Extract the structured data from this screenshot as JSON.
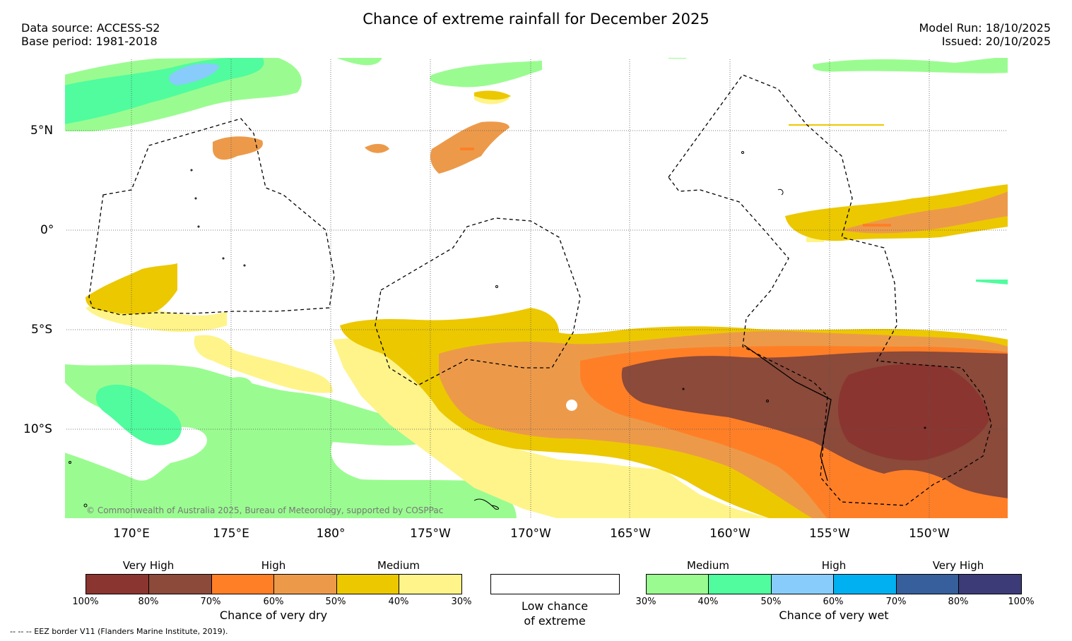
{
  "header": {
    "title": "Chance of extreme rainfall for December 2025",
    "data_source": "Data source: ACCESS-S2",
    "base_period": "Base period: 1981-2018",
    "model_run": "Model Run: 18/10/2025",
    "issued": "Issued: 20/10/2025"
  },
  "map": {
    "lat_labels": [
      "5°N",
      "0°",
      "5°S",
      "10°S"
    ],
    "lon_labels": [
      "170°E",
      "175°E",
      "180°",
      "175°W",
      "170°W",
      "165°W",
      "160°W",
      "155°W",
      "150°W"
    ],
    "copyright": "© Commonwealth of Australia 2025, Bureau of Meteorology, supported by COSPPac"
  },
  "legend": {
    "dry": {
      "categories": [
        "Very High",
        "High",
        "Medium"
      ],
      "percent_labels": [
        "100%",
        "80%",
        "70%",
        "60%",
        "50%",
        "40%",
        "30%"
      ],
      "colors": [
        "#8a3530",
        "#8b4a3a",
        "#ff7f27",
        "#ec9a4a",
        "#ecc800",
        "#fef48a"
      ],
      "caption": "Chance of very dry"
    },
    "neutral": {
      "line1": "Low chance",
      "line2": "of extreme",
      "color": "#ffffff"
    },
    "wet": {
      "categories": [
        "Medium",
        "High",
        "Very High"
      ],
      "percent_labels": [
        "30%",
        "40%",
        "50%",
        "60%",
        "70%",
        "80%",
        "100%"
      ],
      "colors": [
        "#9afc90",
        "#50fc9e",
        "#88ccfb",
        "#00b0f0",
        "#365f9b",
        "#3c3b78"
      ],
      "caption": "Chance of very wet"
    },
    "eez_note": "--  --  -- EEZ border V11 (Flanders Marine Institute, 2019)."
  }
}
